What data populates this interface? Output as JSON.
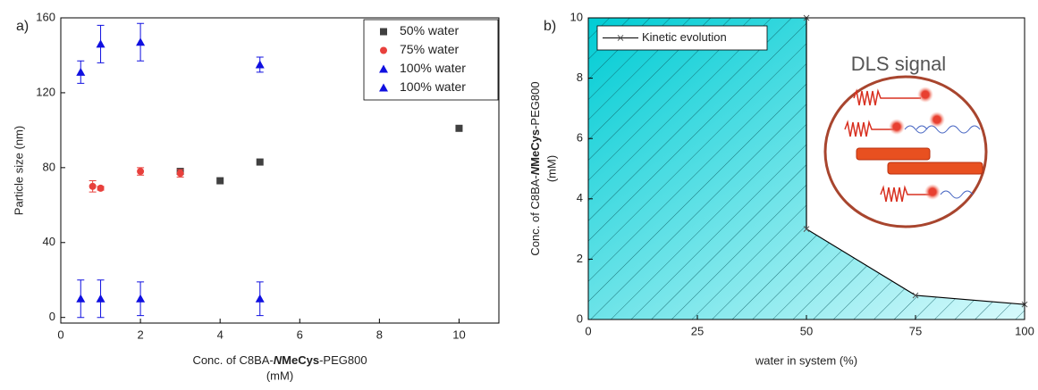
{
  "chart_data": [
    {
      "type": "scatter",
      "panel_label": "a)",
      "y_label": "Particle size (nm)",
      "x_label": [
        "Conc. of C8BA-",
        "N",
        "MeCys",
        "-PEG800"
      ],
      "x_label_line2": "(mM)",
      "xlim": [
        0,
        11
      ],
      "xticks": [
        0,
        2,
        4,
        6,
        8,
        10
      ],
      "ylim": [
        -3,
        160
      ],
      "yticks": [
        0,
        40,
        80,
        120,
        160
      ],
      "legend": "upper right",
      "series": [
        {
          "name": "50% water",
          "color": "#404040",
          "marker": "square",
          "x": [
            3,
            4,
            5,
            10
          ],
          "values": [
            78,
            73,
            83,
            101
          ]
        },
        {
          "name": "75% water",
          "color": "#e8403c",
          "marker": "circle",
          "x": [
            0.8,
            1,
            2,
            3
          ],
          "values": [
            70,
            69,
            78,
            77
          ],
          "errors": [
            3,
            1,
            2,
            2
          ]
        },
        {
          "name": "100% water",
          "color": "#1010e0",
          "marker": "triangle",
          "x": [
            0.5,
            1,
            2,
            5
          ],
          "values": [
            131,
            146,
            147,
            135
          ],
          "errors": [
            6,
            10,
            10,
            4
          ]
        },
        {
          "name": "100% water",
          "color": "#1010e0",
          "marker": "triangle",
          "x": [
            0.5,
            1,
            2,
            5
          ],
          "values": [
            10,
            10,
            10,
            10
          ],
          "errors": [
            10,
            10,
            9,
            9
          ]
        }
      ]
    },
    {
      "type": "area",
      "panel_label": "b)",
      "y_label": [
        "Conc. of C8BA-",
        "N",
        "MeCys",
        "-PEG800"
      ],
      "y_label_line2": "(mM)",
      "x_label": "water in system (%)",
      "annotation": "DLS signal",
      "xlim": [
        0,
        100
      ],
      "xticks": [
        0,
        25,
        50,
        75,
        100
      ],
      "ylim": [
        0,
        10
      ],
      "yticks": [
        0,
        2,
        4,
        6,
        8,
        10
      ],
      "legend": "upper left",
      "fill_color": "#00ccd4",
      "hatch": true,
      "x": [
        50,
        50,
        75,
        100
      ],
      "series": [
        {
          "name": "Kinetic evolution",
          "color": "#000000",
          "values": [
            10,
            3,
            0.8,
            0.5
          ]
        }
      ]
    }
  ]
}
